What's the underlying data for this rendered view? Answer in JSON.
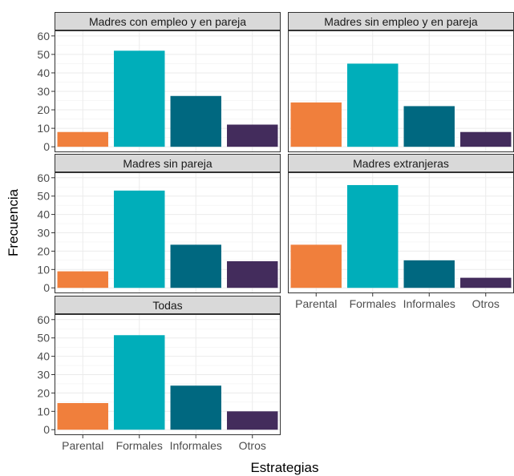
{
  "chart_data": {
    "type": "bar",
    "xlabel": "Estrategias",
    "ylabel": "Frecuencia",
    "categories": [
      "Parental",
      "Formales",
      "Informales",
      "Otros"
    ],
    "colors": [
      "#F07F3C",
      "#00AEBA",
      "#006880",
      "#432C5C"
    ],
    "ylim": [
      0,
      60
    ],
    "yticks": [
      0,
      10,
      20,
      30,
      40,
      50,
      60
    ],
    "grid": true,
    "legend": "none",
    "panels": [
      {
        "title": "Madres con empleo y en pareja",
        "values": [
          8,
          52,
          27.5,
          12
        ]
      },
      {
        "title": "Madres sin empleo y en pareja",
        "values": [
          24,
          45,
          22,
          8
        ]
      },
      {
        "title": "Madres sin pareja",
        "values": [
          9,
          53,
          23.5,
          14.5
        ]
      },
      {
        "title": "Madres extranjeras",
        "values": [
          23.5,
          56,
          15,
          5.5
        ]
      },
      {
        "title": "Todas",
        "values": [
          14.5,
          51.5,
          24,
          10
        ]
      }
    ]
  }
}
